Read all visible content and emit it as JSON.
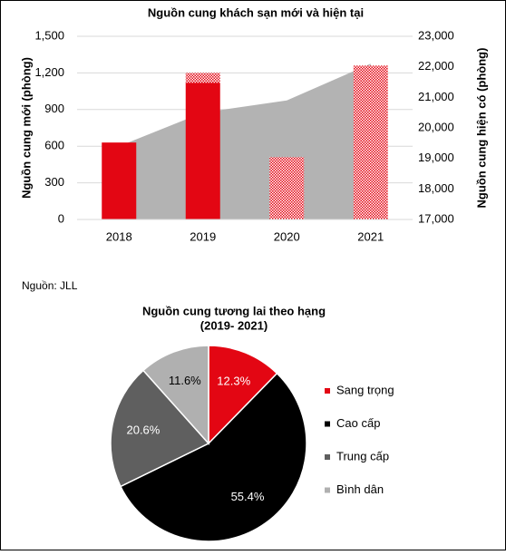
{
  "source": "Nguồn: JLL",
  "chart_data": [
    {
      "type": "bar",
      "title": "Nguồn cung khách sạn mới và hiện tại",
      "y_label": "Nguồn cung mới (phòng)",
      "y2_label": "Nguồn cung hiện có (phòng)",
      "categories": [
        "2018",
        "2019",
        "2020",
        "2021"
      ],
      "stacked": true,
      "series": [
        {
          "type": "bar",
          "style": "solid",
          "color": "#e30613",
          "values": [
            630,
            1120,
            null,
            null
          ]
        },
        {
          "type": "bar",
          "style": "hatched",
          "color": "#e30613",
          "values": [
            null,
            80,
            510,
            1260
          ]
        },
        {
          "type": "area",
          "axis": "y2",
          "color": "#b3b3b3",
          "values": [
            19400,
            20500,
            20900,
            22100
          ]
        }
      ],
      "ylim": [
        0,
        1500
      ],
      "yticks": [
        0,
        300,
        600,
        900,
        {
          "value": 1200,
          "label": "1,200"
        },
        {
          "value": 1500,
          "label": "1,500"
        }
      ],
      "y2lim": [
        17000,
        23000
      ],
      "y2ticks": [
        {
          "value": 17000,
          "label": "17,000"
        },
        {
          "value": 18000,
          "label": "18,000"
        },
        {
          "value": 19000,
          "label": "19,000"
        },
        {
          "value": 20000,
          "label": "20,000"
        },
        {
          "value": 21000,
          "label": "21,000"
        },
        {
          "value": 22000,
          "label": "22,000"
        },
        {
          "value": 23000,
          "label": "23,000"
        }
      ],
      "grid": true
    },
    {
      "type": "pie",
      "title": "Nguồn cung tương lai theo hạng",
      "subtitle": "(2019- 2021)",
      "categories": [
        "Sang trọng",
        "Cao cấp",
        "Trung cấp",
        "Bình dân"
      ],
      "values": [
        12.3,
        55.4,
        20.6,
        11.6
      ],
      "value_labels": [
        "12.3%",
        "55.4%",
        "20.6%",
        "11.6%"
      ],
      "colors": [
        "#e30613",
        "#000000",
        "#5f5f5f",
        "#b0b0b0"
      ],
      "legend": "right"
    }
  ]
}
